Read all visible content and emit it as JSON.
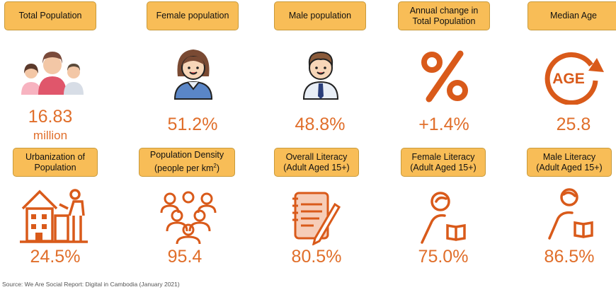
{
  "colors": {
    "accent": "#e06e2a",
    "label_bg": "#f8bd57",
    "icon_orange": "#d95a1a"
  },
  "tiles": [
    {
      "label": "Total Population",
      "value": "16.83",
      "unit": "million",
      "icon": "family-icon"
    },
    {
      "label": "Female population",
      "value": "51.2%",
      "icon": "female-icon"
    },
    {
      "label": "Male population",
      "value": "48.8%",
      "icon": "male-icon"
    },
    {
      "label": "Annual change in Total Population",
      "value": "+1.4%",
      "icon": "percent-icon"
    },
    {
      "label": "Median Age",
      "value": "25.8",
      "icon": "age-icon"
    },
    {
      "label": "Urbanization of Population",
      "value": "24.5%",
      "icon": "city-icon"
    },
    {
      "label_main": "Population Density",
      "label_sub": "(people per km",
      "label_sup": "2",
      "label_end": ")",
      "value": "95.4",
      "icon": "crowd-icon"
    },
    {
      "label_main": "Overall Literacy",
      "label_sub": "(Adult Aged 15+)",
      "value": "80.5%",
      "icon": "notepad-icon"
    },
    {
      "label_main": "Female Literacy",
      "label_sub": "(Adult Aged 15+)",
      "value": "75.0%",
      "icon": "female-reader-icon"
    },
    {
      "label_main": "Male Literacy",
      "label_sub": "(Adult Aged 15+)",
      "value": "86.5%",
      "icon": "male-reader-icon"
    }
  ],
  "source": "Source: We Are Social Report: Digital in Cambodia (January 2021)"
}
